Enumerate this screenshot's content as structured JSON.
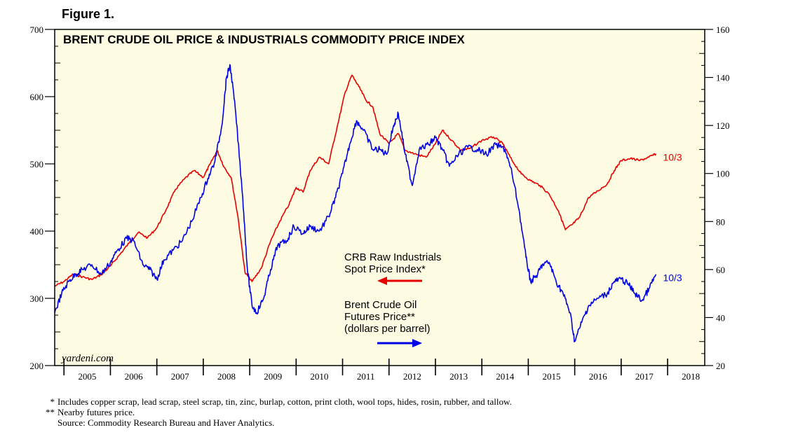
{
  "figure_label": "Figure 1.",
  "colors": {
    "plot_background": "#fdfbe1",
    "red_series": "#e60000",
    "blue_series": "#0000e6",
    "axis": "#000000"
  },
  "chart_data": {
    "type": "line",
    "title": "BRENT CRUDE OIL PRICE & INDUSTRIALS COMMODITY PRICE INDEX",
    "x_tick_labels": [
      "2005",
      "2006",
      "2007",
      "2008",
      "2009",
      "2010",
      "2011",
      "2012",
      "2013",
      "2014",
      "2015",
      "2016",
      "2017",
      "2018"
    ],
    "xlim": [
      2004.8,
      2018.8
    ],
    "left_axis": {
      "ylim": [
        200,
        700
      ],
      "ticks": [
        "200",
        "300",
        "400",
        "500",
        "600",
        "700"
      ]
    },
    "right_axis": {
      "ylim": [
        20,
        160
      ],
      "ticks": [
        "20",
        "40",
        "60",
        "80",
        "100",
        "120",
        "140",
        "160"
      ]
    },
    "grid": false,
    "watermark": "yardeni.com",
    "series": [
      {
        "name": "CRB Raw Industrials Spot Price Index*",
        "axis": "left",
        "color": "#e60000",
        "end_label": "10/3",
        "points": [
          [
            2004.8,
            318
          ],
          [
            2005.0,
            325
          ],
          [
            2005.2,
            336
          ],
          [
            2005.4,
            332
          ],
          [
            2005.6,
            328
          ],
          [
            2005.8,
            335
          ],
          [
            2006.0,
            348
          ],
          [
            2006.2,
            365
          ],
          [
            2006.4,
            382
          ],
          [
            2006.6,
            398
          ],
          [
            2006.8,
            390
          ],
          [
            2007.0,
            405
          ],
          [
            2007.2,
            432
          ],
          [
            2007.4,
            462
          ],
          [
            2007.6,
            478
          ],
          [
            2007.8,
            490
          ],
          [
            2008.0,
            480
          ],
          [
            2008.15,
            500
          ],
          [
            2008.3,
            520
          ],
          [
            2008.45,
            495
          ],
          [
            2008.6,
            480
          ],
          [
            2008.75,
            420
          ],
          [
            2008.9,
            338
          ],
          [
            2009.05,
            325
          ],
          [
            2009.25,
            345
          ],
          [
            2009.45,
            385
          ],
          [
            2009.65,
            415
          ],
          [
            2009.85,
            440
          ],
          [
            2010.0,
            465
          ],
          [
            2010.15,
            458
          ],
          [
            2010.3,
            490
          ],
          [
            2010.5,
            510
          ],
          [
            2010.7,
            500
          ],
          [
            2010.9,
            560
          ],
          [
            2011.05,
            605
          ],
          [
            2011.2,
            632
          ],
          [
            2011.35,
            615
          ],
          [
            2011.5,
            595
          ],
          [
            2011.65,
            585
          ],
          [
            2011.8,
            545
          ],
          [
            2012.0,
            530
          ],
          [
            2012.2,
            545
          ],
          [
            2012.35,
            520
          ],
          [
            2012.55,
            515
          ],
          [
            2012.8,
            510
          ],
          [
            2013.0,
            530
          ],
          [
            2013.15,
            550
          ],
          [
            2013.35,
            535
          ],
          [
            2013.55,
            520
          ],
          [
            2013.75,
            523
          ],
          [
            2014.0,
            535
          ],
          [
            2014.25,
            540
          ],
          [
            2014.45,
            530
          ],
          [
            2014.65,
            505
          ],
          [
            2014.85,
            485
          ],
          [
            2015.05,
            475
          ],
          [
            2015.25,
            468
          ],
          [
            2015.45,
            455
          ],
          [
            2015.65,
            430
          ],
          [
            2015.8,
            402
          ],
          [
            2015.95,
            410
          ],
          [
            2016.1,
            420
          ],
          [
            2016.3,
            450
          ],
          [
            2016.5,
            460
          ],
          [
            2016.7,
            470
          ],
          [
            2016.85,
            490
          ],
          [
            2017.0,
            505
          ],
          [
            2017.2,
            508
          ],
          [
            2017.4,
            505
          ],
          [
            2017.6,
            510
          ],
          [
            2017.75,
            515
          ]
        ]
      },
      {
        "name": "Brent Crude Oil Futures Price** (dollars per barrel)",
        "axis": "right",
        "color": "#0000e6",
        "end_label": "10/3",
        "points": [
          [
            2004.8,
            42
          ],
          [
            2004.95,
            50
          ],
          [
            2005.1,
            55
          ],
          [
            2005.25,
            58
          ],
          [
            2005.4,
            60
          ],
          [
            2005.6,
            62
          ],
          [
            2005.8,
            58
          ],
          [
            2006.0,
            63
          ],
          [
            2006.15,
            68
          ],
          [
            2006.35,
            73
          ],
          [
            2006.5,
            72
          ],
          [
            2006.7,
            62
          ],
          [
            2006.85,
            60
          ],
          [
            2007.0,
            56
          ],
          [
            2007.15,
            64
          ],
          [
            2007.35,
            68
          ],
          [
            2007.55,
            72
          ],
          [
            2007.75,
            80
          ],
          [
            2007.95,
            90
          ],
          [
            2008.1,
            98
          ],
          [
            2008.25,
            105
          ],
          [
            2008.4,
            120
          ],
          [
            2008.5,
            140
          ],
          [
            2008.58,
            145
          ],
          [
            2008.7,
            125
          ],
          [
            2008.85,
            90
          ],
          [
            2008.95,
            60
          ],
          [
            2009.05,
            45
          ],
          [
            2009.15,
            42
          ],
          [
            2009.3,
            48
          ],
          [
            2009.45,
            60
          ],
          [
            2009.6,
            70
          ],
          [
            2009.8,
            72
          ],
          [
            2009.95,
            78
          ],
          [
            2010.15,
            75
          ],
          [
            2010.3,
            78
          ],
          [
            2010.5,
            76
          ],
          [
            2010.7,
            82
          ],
          [
            2010.85,
            90
          ],
          [
            2011.0,
            100
          ],
          [
            2011.15,
            112
          ],
          [
            2011.3,
            122
          ],
          [
            2011.45,
            118
          ],
          [
            2011.65,
            110
          ],
          [
            2011.8,
            110
          ],
          [
            2011.95,
            108
          ],
          [
            2012.1,
            120
          ],
          [
            2012.2,
            125
          ],
          [
            2012.35,
            108
          ],
          [
            2012.5,
            95
          ],
          [
            2012.65,
            110
          ],
          [
            2012.85,
            112
          ],
          [
            2013.0,
            115
          ],
          [
            2013.15,
            110
          ],
          [
            2013.3,
            103
          ],
          [
            2013.5,
            108
          ],
          [
            2013.7,
            111
          ],
          [
            2013.9,
            110
          ],
          [
            2014.1,
            108
          ],
          [
            2014.3,
            112
          ],
          [
            2014.5,
            110
          ],
          [
            2014.65,
            100
          ],
          [
            2014.8,
            85
          ],
          [
            2014.95,
            65
          ],
          [
            2015.05,
            55
          ],
          [
            2015.2,
            58
          ],
          [
            2015.3,
            62
          ],
          [
            2015.45,
            63
          ],
          [
            2015.6,
            55
          ],
          [
            2015.75,
            50
          ],
          [
            2015.9,
            42
          ],
          [
            2016.0,
            30
          ],
          [
            2016.15,
            38
          ],
          [
            2016.3,
            45
          ],
          [
            2016.5,
            48
          ],
          [
            2016.7,
            50
          ],
          [
            2016.85,
            55
          ],
          [
            2017.0,
            56
          ],
          [
            2017.15,
            54
          ],
          [
            2017.3,
            50
          ],
          [
            2017.45,
            47
          ],
          [
            2017.6,
            52
          ],
          [
            2017.75,
            58
          ]
        ]
      }
    ],
    "legend": [
      {
        "label_lines": [
          "CRB Raw Industrials",
          "Spot Price Index*"
        ],
        "color": "#e60000",
        "arrow": "left"
      },
      {
        "label_lines": [
          "Brent Crude Oil",
          "Futures Price**",
          "(dollars per barrel)"
        ],
        "color": "#0000e6",
        "arrow": "right"
      }
    ]
  },
  "footnotes": [
    {
      "mark": "*",
      "text": "Includes copper scrap, lead scrap, steel scrap, tin, zinc, burlap, cotton, print cloth, wool tops, hides, rosin, rubber, and tallow."
    },
    {
      "mark": "**",
      "text": "Nearby futures price."
    },
    {
      "mark": "",
      "text": "Source: Commodity Research Bureau and Haver Analytics."
    }
  ]
}
